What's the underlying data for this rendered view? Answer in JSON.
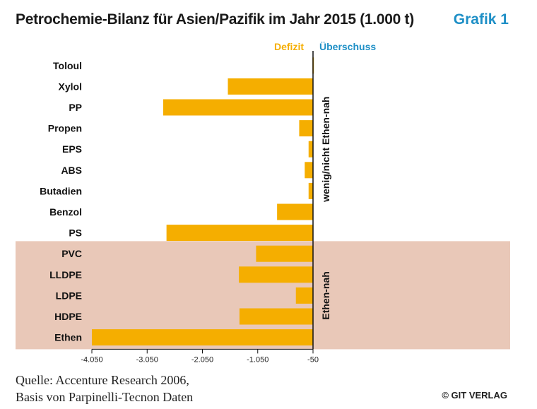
{
  "header": {
    "title": "Petrochemie-Bilanz für Asien/Pazifik im Jahr 2015 (1.000 t)",
    "figure_label": "Grafik 1"
  },
  "legend": {
    "deficit": "Defizit",
    "surplus": "Überschuss"
  },
  "footer": {
    "source_line1": "Quelle: Accenture Research 2006,",
    "source_line2": "Basis von Parpinelli-Tecnon Daten",
    "copyright": "© GIT VERLAG"
  },
  "colors": {
    "bar": "#f5ae00",
    "shade": "#e9c8b8",
    "surplus": "#1e8fc6",
    "axis": "#111111"
  },
  "chart_data": {
    "type": "bar",
    "orientation": "horizontal",
    "title": "Petrochemie-Bilanz für Asien/Pazifik im Jahr 2015 (1.000 t)",
    "categories": [
      "Toloul",
      "Xylol",
      "PP",
      "Propen",
      "EPS",
      "ABS",
      "Butadien",
      "Benzol",
      "PS",
      "PVC",
      "LLDPE",
      "LDPE",
      "HDPE",
      "Ethen"
    ],
    "values": [
      -60,
      -1590,
      -2760,
      -300,
      -130,
      -200,
      -130,
      -700,
      -2700,
      -1080,
      -1390,
      -360,
      -1380,
      -4050
    ],
    "xlim": [
      -4050,
      -50
    ],
    "xticks": [
      -4050,
      -3050,
      -2050,
      -1050,
      -50
    ],
    "xtick_labels": [
      "-4.050",
      "-3.050",
      "-2.050",
      "-1.050",
      "-50"
    ],
    "groups": [
      {
        "label": "wenig/nicht Ethen-nah",
        "from": 0,
        "to": 8,
        "shaded": false
      },
      {
        "label": "Ethen-nah",
        "from": 9,
        "to": 13,
        "shaded": true
      }
    ]
  }
}
